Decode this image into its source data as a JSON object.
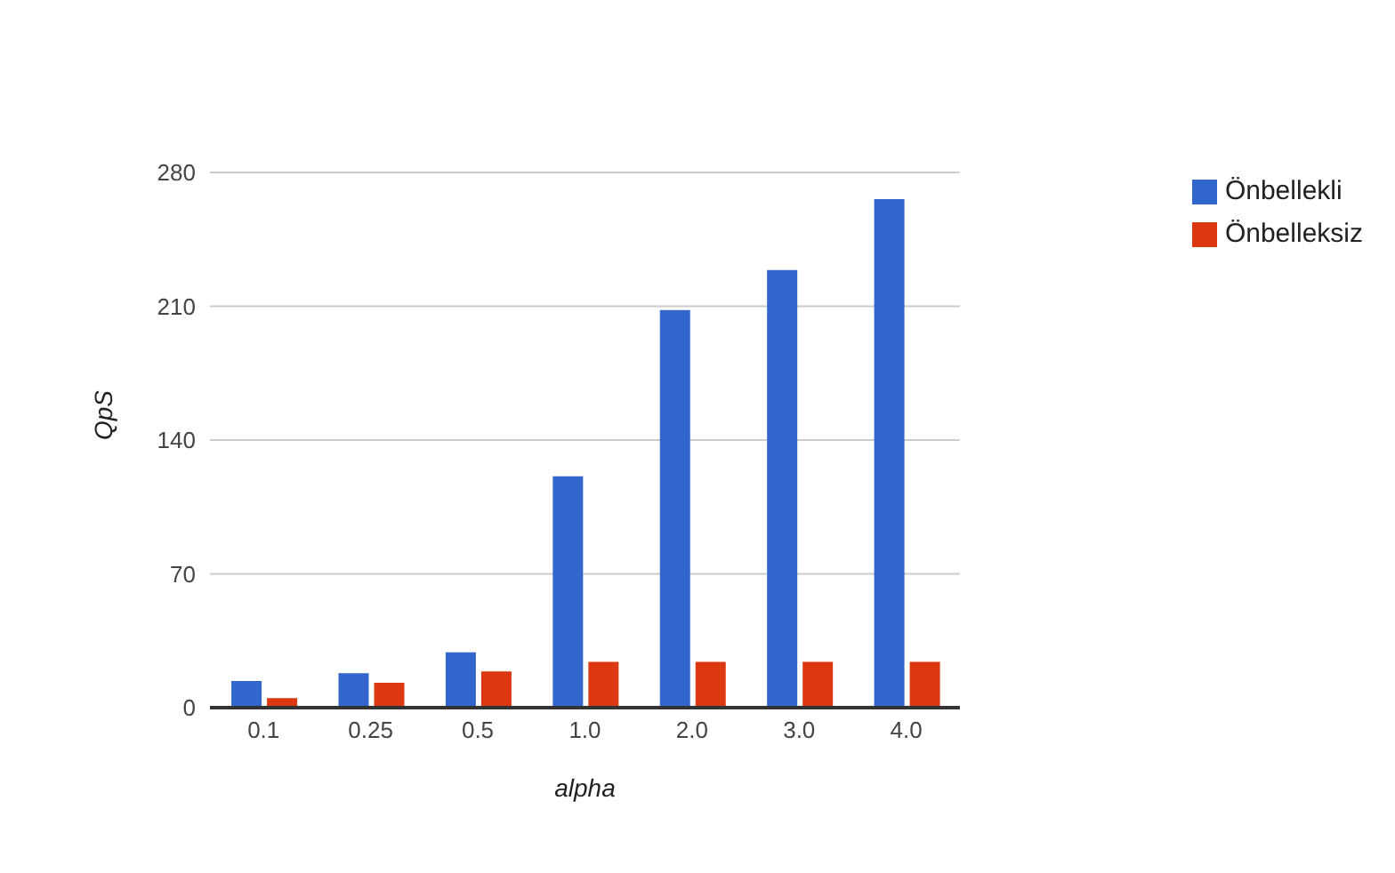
{
  "chart_data": {
    "type": "bar",
    "xlabel": "alpha",
    "ylabel": "QpS",
    "categories": [
      "0.1",
      "0.25",
      "0.5",
      "1.0",
      "2.0",
      "3.0",
      "4.0"
    ],
    "series": [
      {
        "name": "Önbellekli",
        "color": "#3366cc",
        "values": [
          14,
          18,
          29,
          121,
          208,
          229,
          266
        ]
      },
      {
        "name": "Önbelleksiz",
        "color": "#dc3912",
        "values": [
          5,
          13,
          19,
          24,
          24,
          24,
          24
        ]
      }
    ],
    "ylim": [
      0,
      280
    ],
    "yticks": [
      0,
      70,
      140,
      210,
      280
    ],
    "grid": "y",
    "legend": "top right"
  }
}
